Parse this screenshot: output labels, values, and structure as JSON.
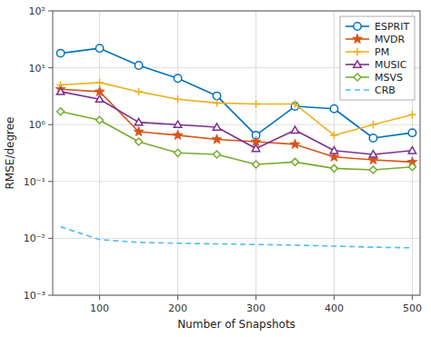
{
  "chart_data": {
    "type": "line",
    "xlabel": "Number of Snapshots",
    "ylabel": "RMSE/degree",
    "x": [
      50,
      100,
      150,
      200,
      250,
      300,
      350,
      400,
      450,
      500
    ],
    "series": [
      {
        "name": "ESPRIT",
        "color": "#0072BD",
        "marker": "circle",
        "line_style": "solid",
        "values": [
          18.0,
          22.0,
          11.0,
          6.5,
          3.2,
          0.65,
          2.1,
          1.9,
          0.58,
          0.72
        ]
      },
      {
        "name": "MVDR",
        "color": "#D95319",
        "marker": "star",
        "line_style": "solid",
        "values": [
          4.2,
          3.8,
          0.75,
          0.65,
          0.55,
          0.5,
          0.45,
          0.27,
          0.24,
          0.22
        ]
      },
      {
        "name": "PM",
        "color": "#EDB120",
        "marker": "plus",
        "line_style": "solid",
        "values": [
          5.0,
          5.5,
          3.8,
          2.8,
          2.4,
          2.3,
          2.3,
          0.65,
          1.0,
          1.5
        ]
      },
      {
        "name": "MUSIC",
        "color": "#7E2F8E",
        "marker": "triangle",
        "line_style": "solid",
        "values": [
          3.8,
          2.8,
          1.1,
          1.0,
          0.9,
          0.38,
          0.8,
          0.35,
          0.3,
          0.35
        ]
      },
      {
        "name": "MSVS",
        "color": "#77AC30",
        "marker": "diamond",
        "line_style": "solid",
        "values": [
          1.7,
          1.2,
          0.5,
          0.32,
          0.3,
          0.2,
          0.22,
          0.17,
          0.16,
          0.18
        ]
      },
      {
        "name": "CRB",
        "color": "#4DBEEE",
        "line_style": "dashed",
        "values": [
          0.016,
          0.0095,
          0.0085,
          0.0082,
          0.008,
          0.0078,
          0.0076,
          0.0073,
          0.007,
          0.0068
        ]
      }
    ],
    "xlim": [
      40,
      510
    ],
    "xticks": [
      100,
      200,
      300,
      400,
      500
    ],
    "ylim": [
      0.001,
      100
    ],
    "yticks": [
      {
        "value": 0.001,
        "label": "10⁻³"
      },
      {
        "value": 0.01,
        "label": "10⁻²"
      },
      {
        "value": 0.1,
        "label": "10⁻¹"
      },
      {
        "value": 1,
        "label": "10⁰"
      },
      {
        "value": 10,
        "label": "10¹"
      },
      {
        "value": 100,
        "label": "10²"
      }
    ],
    "log": "y",
    "grid": true,
    "legend": "upper right"
  }
}
